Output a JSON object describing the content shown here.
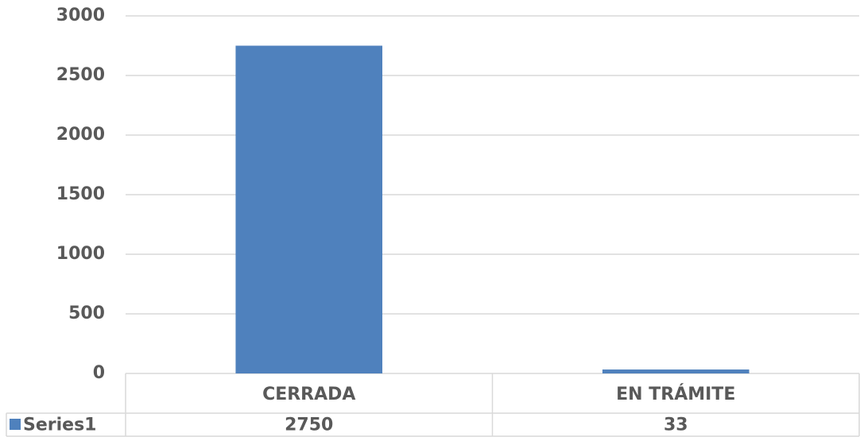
{
  "chart_data": {
    "type": "bar",
    "categories": [
      "CERRADA",
      "EN TRÁMITE"
    ],
    "series": [
      {
        "name": "Series1",
        "color": "#4f81bd",
        "values": [
          2750,
          33
        ]
      }
    ],
    "ylim": [
      0,
      3000
    ],
    "yticks": [
      0,
      500,
      1000,
      1500,
      2000,
      2500,
      3000
    ],
    "grid": true,
    "data_table": true
  }
}
